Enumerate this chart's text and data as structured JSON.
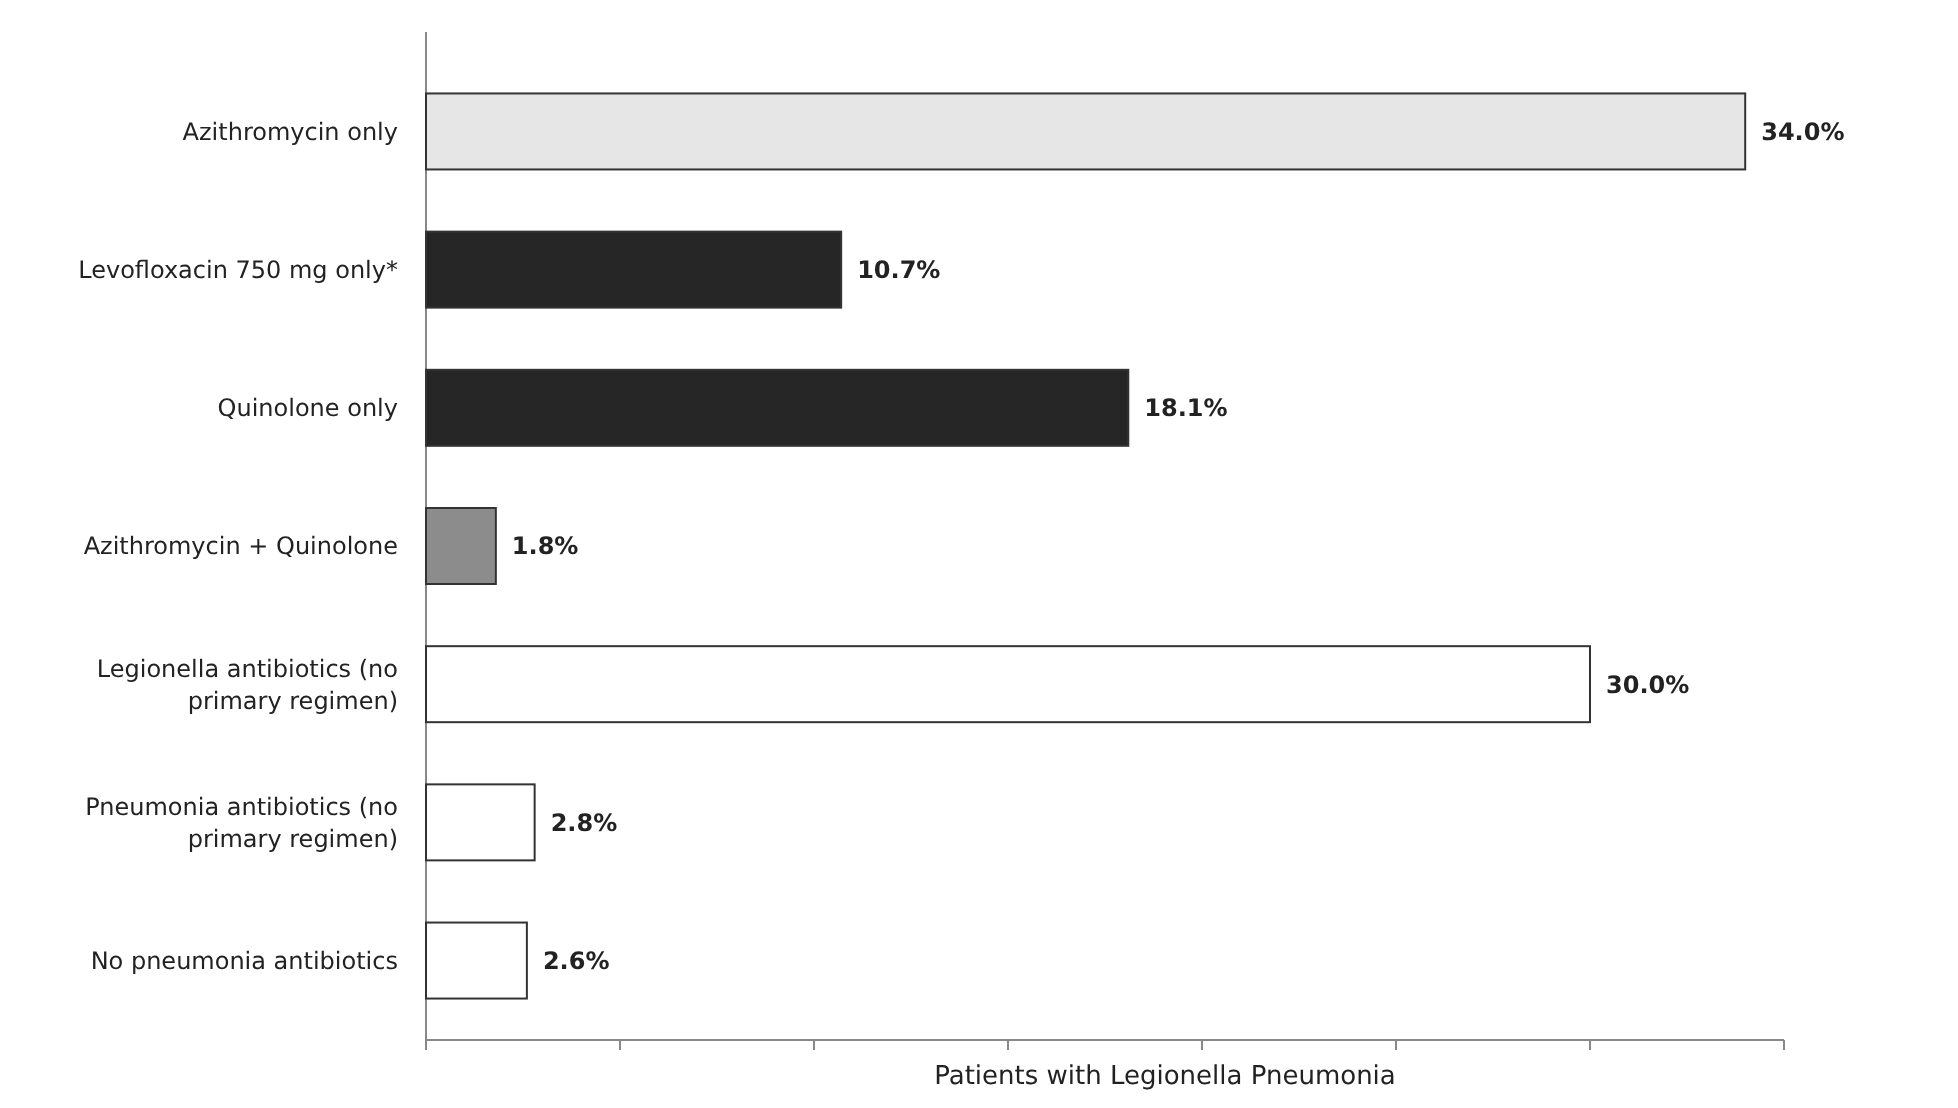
{
  "chart_data": {
    "type": "bar",
    "orientation": "horizontal",
    "xlabel": "Patients with Legionella Pneumonia",
    "categories": [
      "Azithromycin only",
      "Levofloxacin 750 mg only*",
      "Quinolone only",
      "Azithromycin + Quinolone",
      "Legionella antibiotics (no primary regimen)",
      "Pneumonia antibiotics (no primary regimen)",
      "No pneumonia antibiotics"
    ],
    "values": [
      34.0,
      10.7,
      18.1,
      1.8,
      30.0,
      2.8,
      2.6
    ],
    "value_labels": [
      "34.0%",
      "10.7%",
      "18.1%",
      "1.8%",
      "30.0%",
      "2.8%",
      "2.6%"
    ],
    "colors": [
      "#e6e6e6",
      "#262626",
      "#262626",
      "#8c8c8c",
      "#ffffff",
      "#ffffff",
      "#ffffff"
    ],
    "xlim": [
      0,
      35
    ],
    "xticks": [
      {
        "value": 0,
        "label": null
      },
      {
        "value": 5,
        "label": null
      },
      {
        "value": 10,
        "label": null
      },
      {
        "value": 15,
        "label": null
      },
      {
        "value": 20,
        "label": null
      },
      {
        "value": 25,
        "label": null
      },
      {
        "value": 30,
        "label": null
      },
      {
        "value": 35,
        "label": null
      }
    ],
    "tick_labels": "y",
    "grid": false
  }
}
